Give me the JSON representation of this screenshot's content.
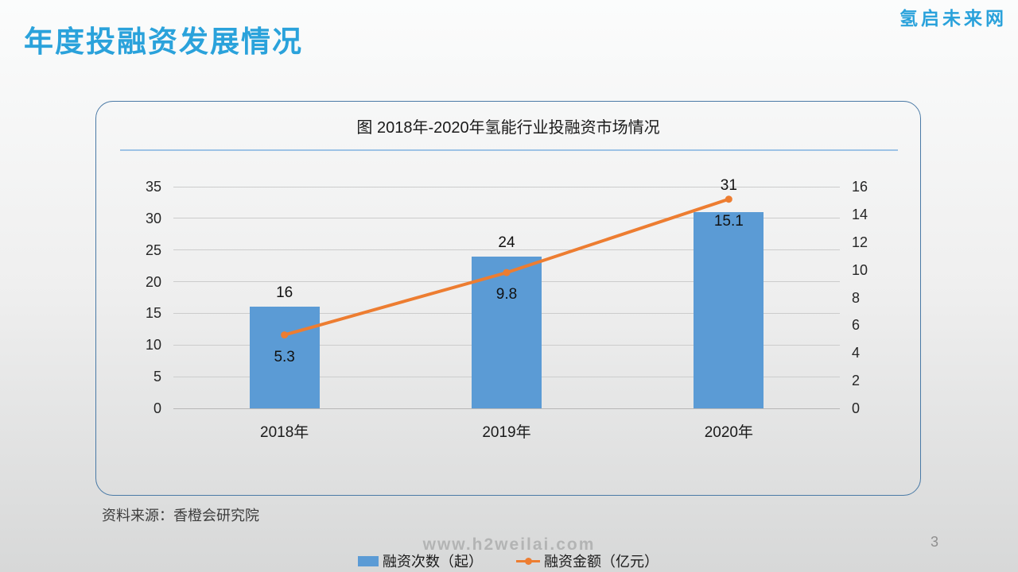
{
  "page": {
    "title": "年度投融资发展情况",
    "logo": "氢启未来网",
    "source": "资料来源：香橙会研究院",
    "footer_url": "www.h2weilai.com",
    "page_number": "3"
  },
  "colors": {
    "accent_blue": "#2aa2db",
    "bar_blue": "#5b9bd5",
    "line_orange": "#ed7d31",
    "card_border": "#4a7aa6",
    "divider_blue": "#9dc3e6"
  },
  "chart_data": {
    "type": "bar",
    "subtype": "bar-line-combo",
    "title": "图 2018年-2020年氢能行业投融资市场情况",
    "categories": [
      "2018年",
      "2019年",
      "2020年"
    ],
    "series": [
      {
        "name": "融资次数（起）",
        "type": "bar",
        "axis": "left",
        "values": [
          16,
          24,
          31
        ],
        "color": "#5b9bd5"
      },
      {
        "name": "融资金额（亿元）",
        "type": "line",
        "axis": "right",
        "values": [
          5.3,
          9.8,
          15.1
        ],
        "color": "#ed7d31"
      }
    ],
    "left_axis": {
      "min": 0,
      "max": 35,
      "step": 5,
      "ticks": [
        35,
        30,
        25,
        20,
        15,
        10,
        5,
        0
      ]
    },
    "right_axis": {
      "min": 0,
      "max": 16,
      "step": 2,
      "ticks": [
        16,
        14,
        12,
        10,
        8,
        6,
        4,
        2,
        0
      ]
    },
    "grid": true,
    "legend_position": "bottom",
    "data_labels": true
  }
}
